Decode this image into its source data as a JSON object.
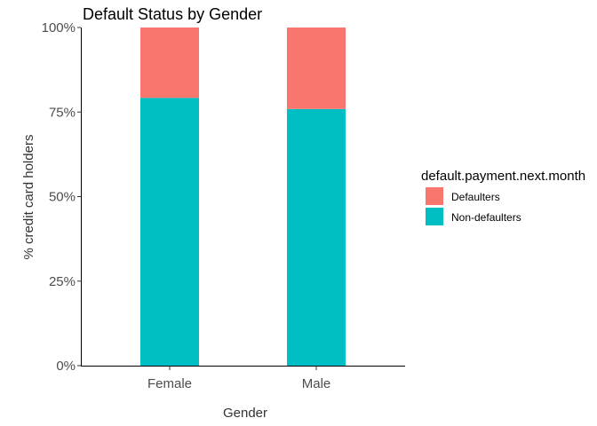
{
  "chart_data": {
    "type": "bar",
    "stacked": true,
    "title": "Default Status by Gender",
    "xlabel": "Gender",
    "ylabel": "% credit card holders",
    "categories": [
      "Female",
      "Male"
    ],
    "series": [
      {
        "name": "Non-defaulters",
        "color": "#00BFC4",
        "values": [
          79.2,
          75.9
        ]
      },
      {
        "name": "Defaulters",
        "color": "#F8766D",
        "values": [
          20.8,
          24.1
        ]
      }
    ],
    "yticks": [
      "0%",
      "25%",
      "50%",
      "75%",
      "100%"
    ],
    "ylim": [
      0,
      100
    ],
    "grid": false,
    "legend": {
      "title": "default.payment.next.month",
      "position": "right",
      "entries": [
        {
          "label": "Defaulters",
          "color": "#F8766D"
        },
        {
          "label": "Non-defaulters",
          "color": "#00BFC4"
        }
      ]
    }
  }
}
